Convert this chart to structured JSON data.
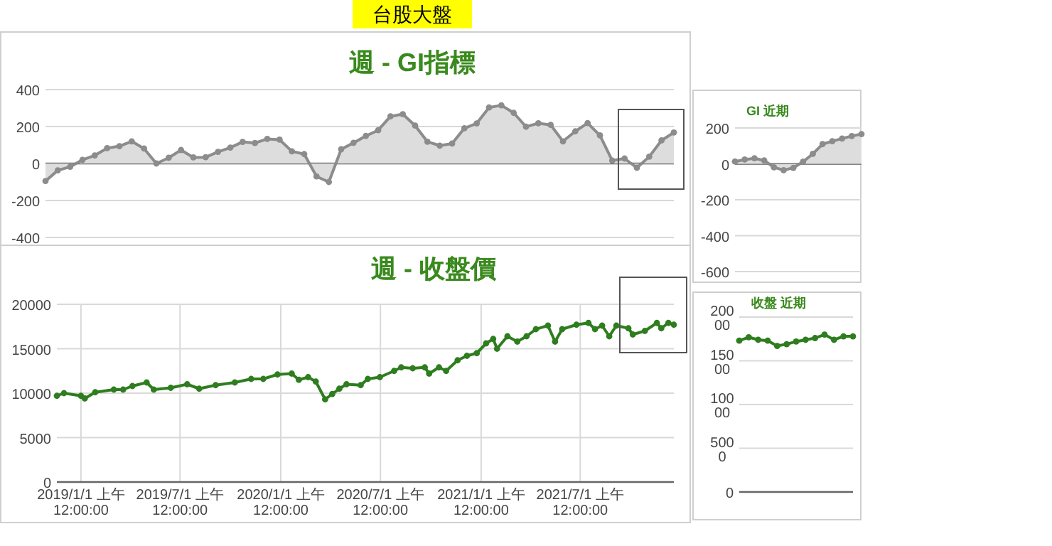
{
  "chart_data": [
    {
      "type": "area",
      "title": "週 -  GI指標",
      "annotations": [
        "台股大盤"
      ],
      "grid": "y",
      "marker": "circle",
      "tick_labels": "y",
      "ylim": [
        -400,
        400
      ],
      "yticks": [
        -400,
        -200,
        0,
        200,
        400
      ],
      "categories": [
        null,
        null,
        null,
        null,
        null,
        null,
        null,
        null,
        null,
        null,
        null,
        null,
        null,
        null,
        null,
        null,
        null,
        null,
        null,
        null,
        null,
        null,
        null,
        null,
        null,
        null,
        null,
        null,
        null,
        null,
        null,
        null,
        null,
        null,
        null,
        null,
        null,
        null,
        null,
        null,
        null,
        null,
        null,
        null,
        null,
        null,
        null,
        null,
        null,
        null,
        null,
        null
      ],
      "series": [
        {
          "color": "#8c8c8c",
          "values": [
            -95,
            -37,
            -18,
            20,
            44,
            83,
            94,
            120,
            81,
            0,
            31,
            73,
            33,
            34,
            63,
            86,
            117,
            111,
            133,
            129,
            66,
            51,
            -70,
            -100,
            77,
            112,
            149,
            180,
            255,
            267,
            205,
            118,
            97,
            108,
            191,
            217,
            303,
            315,
            274,
            199,
            218,
            209,
            120,
            174,
            219,
            152,
            16,
            27,
            -23,
            37,
            125,
            168
          ]
        }
      ]
    },
    {
      "type": "line",
      "title": "週 -  收盤價",
      "grid": true,
      "marker": "circle",
      "xlim": [
        "2018-11-18",
        "2021-12-19"
      ],
      "ylim": [
        0,
        20000
      ],
      "yticks": [
        0,
        5000,
        10000,
        15000,
        20000
      ],
      "xticks": [
        {
          "value": "2019-01-01",
          "label": "2019/1/1 上午 12:00:00"
        },
        {
          "value": "2019-07-01",
          "label": "2019/7/1 上午 12:00:00"
        },
        {
          "value": "2020-01-01",
          "label": "2020/1/1 上午 12:00:00"
        },
        {
          "value": "2020-07-01",
          "label": "2020/7/1 上午 12:00:00"
        },
        {
          "value": "2021-01-01",
          "label": "2021/1/1 上午 12:00:00"
        },
        {
          "value": "2021-07-01",
          "label": "2021/7/1 上午 12:00:00"
        }
      ],
      "series": [
        {
          "color": "#2e7d1e",
          "x": [
            "2018-11-18",
            "2018-12-01",
            "2019-01-01",
            "2019-01-08",
            "2019-01-27",
            "2019-03-02",
            "2019-03-19",
            "2019-04-05",
            "2019-05-01",
            "2019-05-14",
            "2019-06-14",
            "2019-07-14",
            "2019-08-05",
            "2019-09-04",
            "2019-10-09",
            "2019-11-08",
            "2019-11-30",
            "2019-12-26",
            "2020-01-21",
            "2020-02-03",
            "2020-02-20",
            "2020-03-05",
            "2020-03-22",
            "2020-04-04",
            "2020-04-17",
            "2020-04-30",
            "2020-05-26",
            "2020-06-08",
            "2020-06-30",
            "2020-07-26",
            "2020-08-08",
            "2020-08-29",
            "2020-09-20",
            "2020-09-28",
            "2020-10-16",
            "2020-10-29",
            "2020-11-19",
            "2020-12-06",
            "2020-12-24",
            "2021-01-10",
            "2021-01-23",
            "2021-01-30",
            "2021-02-18",
            "2021-03-08",
            "2021-03-25",
            "2021-04-11",
            "2021-05-03",
            "2021-05-16",
            "2021-05-29",
            "2021-06-24",
            "2021-07-16",
            "2021-07-28",
            "2021-08-10",
            "2021-08-23",
            "2021-09-05",
            "2021-09-27",
            "2021-10-05",
            "2021-10-27",
            "2021-11-18",
            "2021-11-26",
            "2021-12-09",
            "2021-12-19"
          ],
          "values": [
            9700,
            10000,
            9700,
            9400,
            10100,
            10400,
            10400,
            10800,
            11200,
            10400,
            10600,
            11000,
            10500,
            10900,
            11200,
            11600,
            11600,
            12100,
            12200,
            11500,
            11800,
            11300,
            9300,
            9900,
            10500,
            11000,
            10900,
            11600,
            11800,
            12500,
            12900,
            12800,
            12900,
            12200,
            12900,
            12500,
            13700,
            14200,
            14500,
            15600,
            16100,
            15000,
            16400,
            15800,
            16400,
            17200,
            17600,
            15800,
            17200,
            17700,
            17900,
            17200,
            17600,
            16400,
            17600,
            17300,
            16600,
            17000,
            17900,
            17300,
            17900,
            17700
          ]
        }
      ]
    },
    {
      "type": "area",
      "title": "GI 近期",
      "grid": "y",
      "marker": "circle",
      "tick_labels": "y",
      "ylim": [
        -600,
        200
      ],
      "yticks": [
        -600,
        -400,
        -200,
        0,
        200
      ],
      "categories": [
        null,
        null,
        null,
        null,
        null,
        null,
        null,
        null,
        null,
        null,
        null,
        null,
        null,
        null
      ],
      "series": [
        {
          "color": "#8c8c8c",
          "values": [
            13,
            24,
            31,
            19,
            -19,
            -35,
            -22,
            12,
            56,
            110,
            126,
            141,
            155,
            166
          ]
        }
      ]
    },
    {
      "type": "line",
      "title": "收盤 近期",
      "grid": "y",
      "marker": "circle",
      "tick_labels": "y",
      "ylim": [
        0,
        20000
      ],
      "yticks": [
        0,
        5000,
        10000,
        15000,
        20000
      ],
      "categories": [
        null,
        null,
        null,
        null,
        null,
        null,
        null,
        null,
        null,
        null,
        null,
        null,
        null
      ],
      "series": [
        {
          "color": "#2e7d1e",
          "values": [
            17300,
            17700,
            17400,
            17300,
            16700,
            16900,
            17200,
            17400,
            17600,
            18000,
            17400,
            17800,
            17800
          ]
        }
      ]
    }
  ]
}
